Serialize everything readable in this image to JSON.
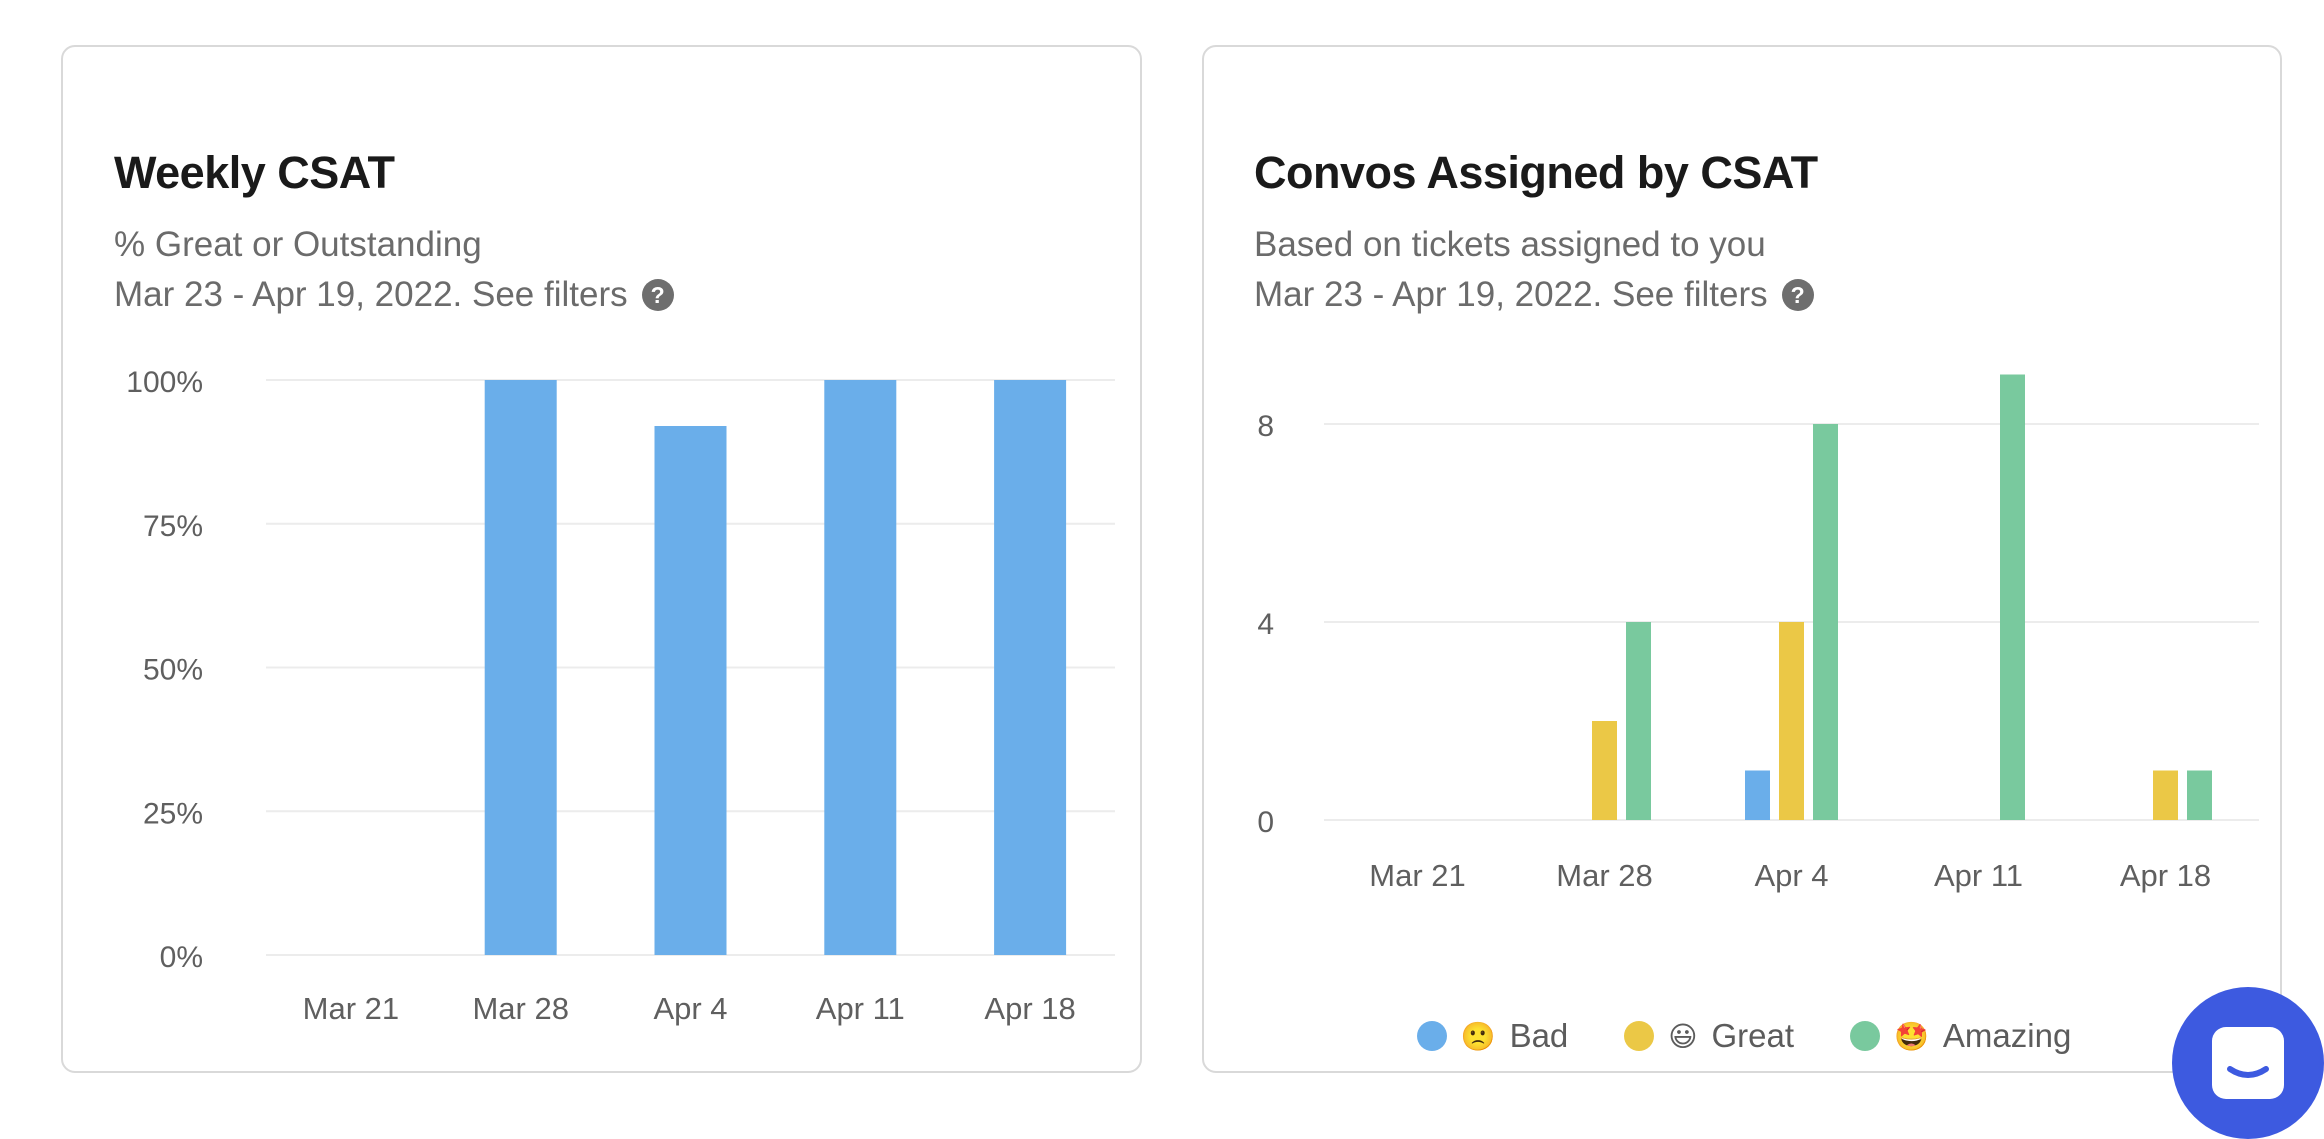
{
  "weekly_csat": {
    "title": "Weekly CSAT",
    "subtitle": "% Great or Outstanding",
    "date_range": "Mar 23 - Apr 19, 2022. See filters",
    "help_icon": "?"
  },
  "convos_csat": {
    "title": "Convos Assigned by CSAT",
    "subtitle": "Based on tickets assigned to you",
    "date_range": "Mar 23 - Apr 19, 2022. See filters",
    "help_icon": "?",
    "legend": [
      {
        "emoji": "🙁",
        "label": "Bad",
        "color": "#6aaeea"
      },
      {
        "emoji": "😃",
        "label": "Great",
        "color": "#ebc846"
      },
      {
        "emoji": "🤩",
        "label": "Amazing",
        "color": "#79c99e"
      }
    ]
  },
  "chart_data": [
    {
      "type": "bar",
      "title": "Weekly CSAT",
      "subtitle": "% Great or Outstanding",
      "categories": [
        "Mar 21",
        "Mar 28",
        "Apr 4",
        "Apr 11",
        "Apr 18"
      ],
      "values": [
        null,
        100,
        92,
        100,
        100
      ],
      "ylim": [
        0,
        100
      ],
      "yticks": [
        0,
        25,
        50,
        75,
        100
      ],
      "ytick_labels": [
        "0%",
        "25%",
        "50%",
        "75%",
        "100%"
      ],
      "grid": true,
      "color": "#6aaeea"
    },
    {
      "type": "bar",
      "title": "Convos Assigned by CSAT",
      "subtitle": "Based on tickets assigned to you",
      "categories": [
        "Mar 21",
        "Mar 28",
        "Apr 4",
        "Apr 11",
        "Apr 18"
      ],
      "series": [
        {
          "name": "Bad",
          "color": "#6aaeea",
          "values": [
            0,
            0,
            1,
            0,
            0
          ]
        },
        {
          "name": "Great",
          "color": "#ebc846",
          "values": [
            0,
            2,
            4,
            0,
            1
          ]
        },
        {
          "name": "Amazing",
          "color": "#79c99e",
          "values": [
            0,
            4,
            8,
            9,
            1
          ]
        }
      ],
      "ylim": [
        0,
        9
      ],
      "yticks": [
        0,
        4,
        8
      ],
      "ytick_labels": [
        "0",
        "4",
        "8"
      ],
      "grid": true,
      "legend_position": "bottom-center"
    }
  ],
  "chat_launcher": {
    "icon": "chat-bubble-icon",
    "color": "#3d5ae0"
  }
}
